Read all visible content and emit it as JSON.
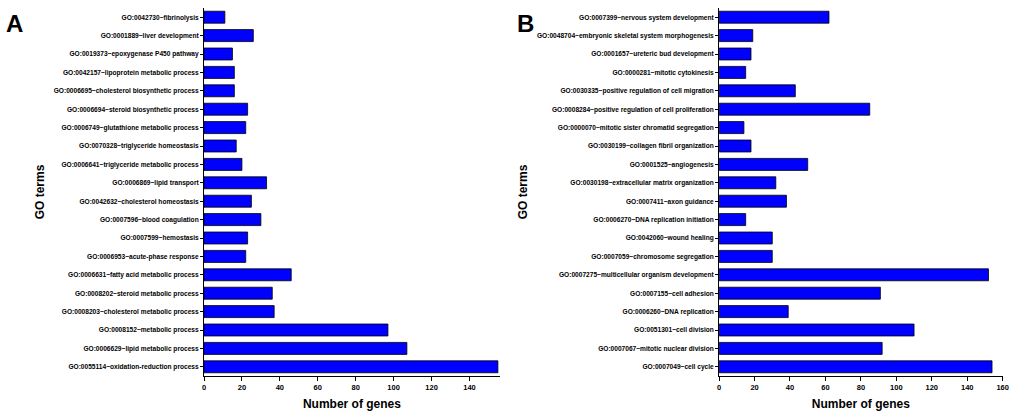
{
  "chart_data": [
    {
      "type": "bar",
      "title": "A",
      "orientation": "horizontal",
      "color": "#0000ff",
      "xlabel": "Number of genes",
      "ylabel": "GO terms",
      "categories": [
        "GO:0042730~fibrinolysis",
        "GO:0001889~liver development",
        "GO:0019373~epoxygenase P450 pathway",
        "GO:0042157~lipoprotein metabolic process",
        "GO:0006695~cholesterol biosynthetic process",
        "GO:0006694~steroid biosynthetic process",
        "GO:0006749~glutathione metabolic process",
        "GO:0070328~triglyceride homeostasis",
        "GO:0006641~triglyceride metabolic process",
        "GO:0006869~lipid transport",
        "GO:0042632~cholesterol homeostasis",
        "GO:0007596~blood coagulation",
        "GO:0007599~hemostasis",
        "GO:0006953~acute-phase response",
        "GO:0006631~fatty acid metabolic process",
        "GO:0008202~steroid metabolic process",
        "GO:0008203~cholesterol metabolic process",
        "GO:0008152~metabolic process",
        "GO:0006629~lipid metabolic process",
        "GO:0055114~oxidation-reduction process"
      ],
      "values": [
        11,
        26,
        15,
        16,
        16,
        23,
        22,
        17,
        20,
        33,
        25,
        30,
        23,
        22,
        46,
        36,
        37,
        97,
        107,
        155
      ],
      "xlim": [
        0,
        156
      ],
      "xticks": [
        0,
        20,
        40,
        60,
        80,
        100,
        120,
        140
      ],
      "grid": false
    },
    {
      "type": "bar",
      "title": "B",
      "orientation": "horizontal",
      "color": "#0000ff",
      "xlabel": "Number of genes",
      "ylabel": "GO terms",
      "categories": [
        "GO:0007399~nervous system development",
        "GO:0048704~embryonic skeletal system morphogenesis",
        "GO:0001657~ureteric bud development",
        "GO:0000281~mitotic cytokinesis",
        "GO:0030335~positive regulation of cell migration",
        "GO:0008284~positive regulation of cell proliferation",
        "GO:0000070~mitotic sister chromatid segregation",
        "GO:0030199~collagen fibril organization",
        "GO:0001525~angiogenesis",
        "GO:0030198~extracellular matrix organization",
        "GO:0007411~axon guidance",
        "GO:0006270~DNA replication initiation",
        "GO:0042060~wound healing",
        "GO:0007059~chromosome segregation",
        "GO:0007275~multicellular organism development",
        "GO:0007155~cell adhesion",
        "GO:0006260~DNA replication",
        "GO:0051301~cell division",
        "GO:0007067~mitotic nuclear division",
        "GO:0007049~cell cycle"
      ],
      "values": [
        62,
        19,
        18,
        15,
        43,
        85,
        14,
        18,
        50,
        32,
        38,
        15,
        30,
        30,
        152,
        91,
        39,
        110,
        92,
        154
      ],
      "xlim": [
        0,
        160
      ],
      "xticks": [
        0,
        20,
        40,
        60,
        80,
        100,
        120,
        140,
        160
      ],
      "grid": false
    }
  ]
}
